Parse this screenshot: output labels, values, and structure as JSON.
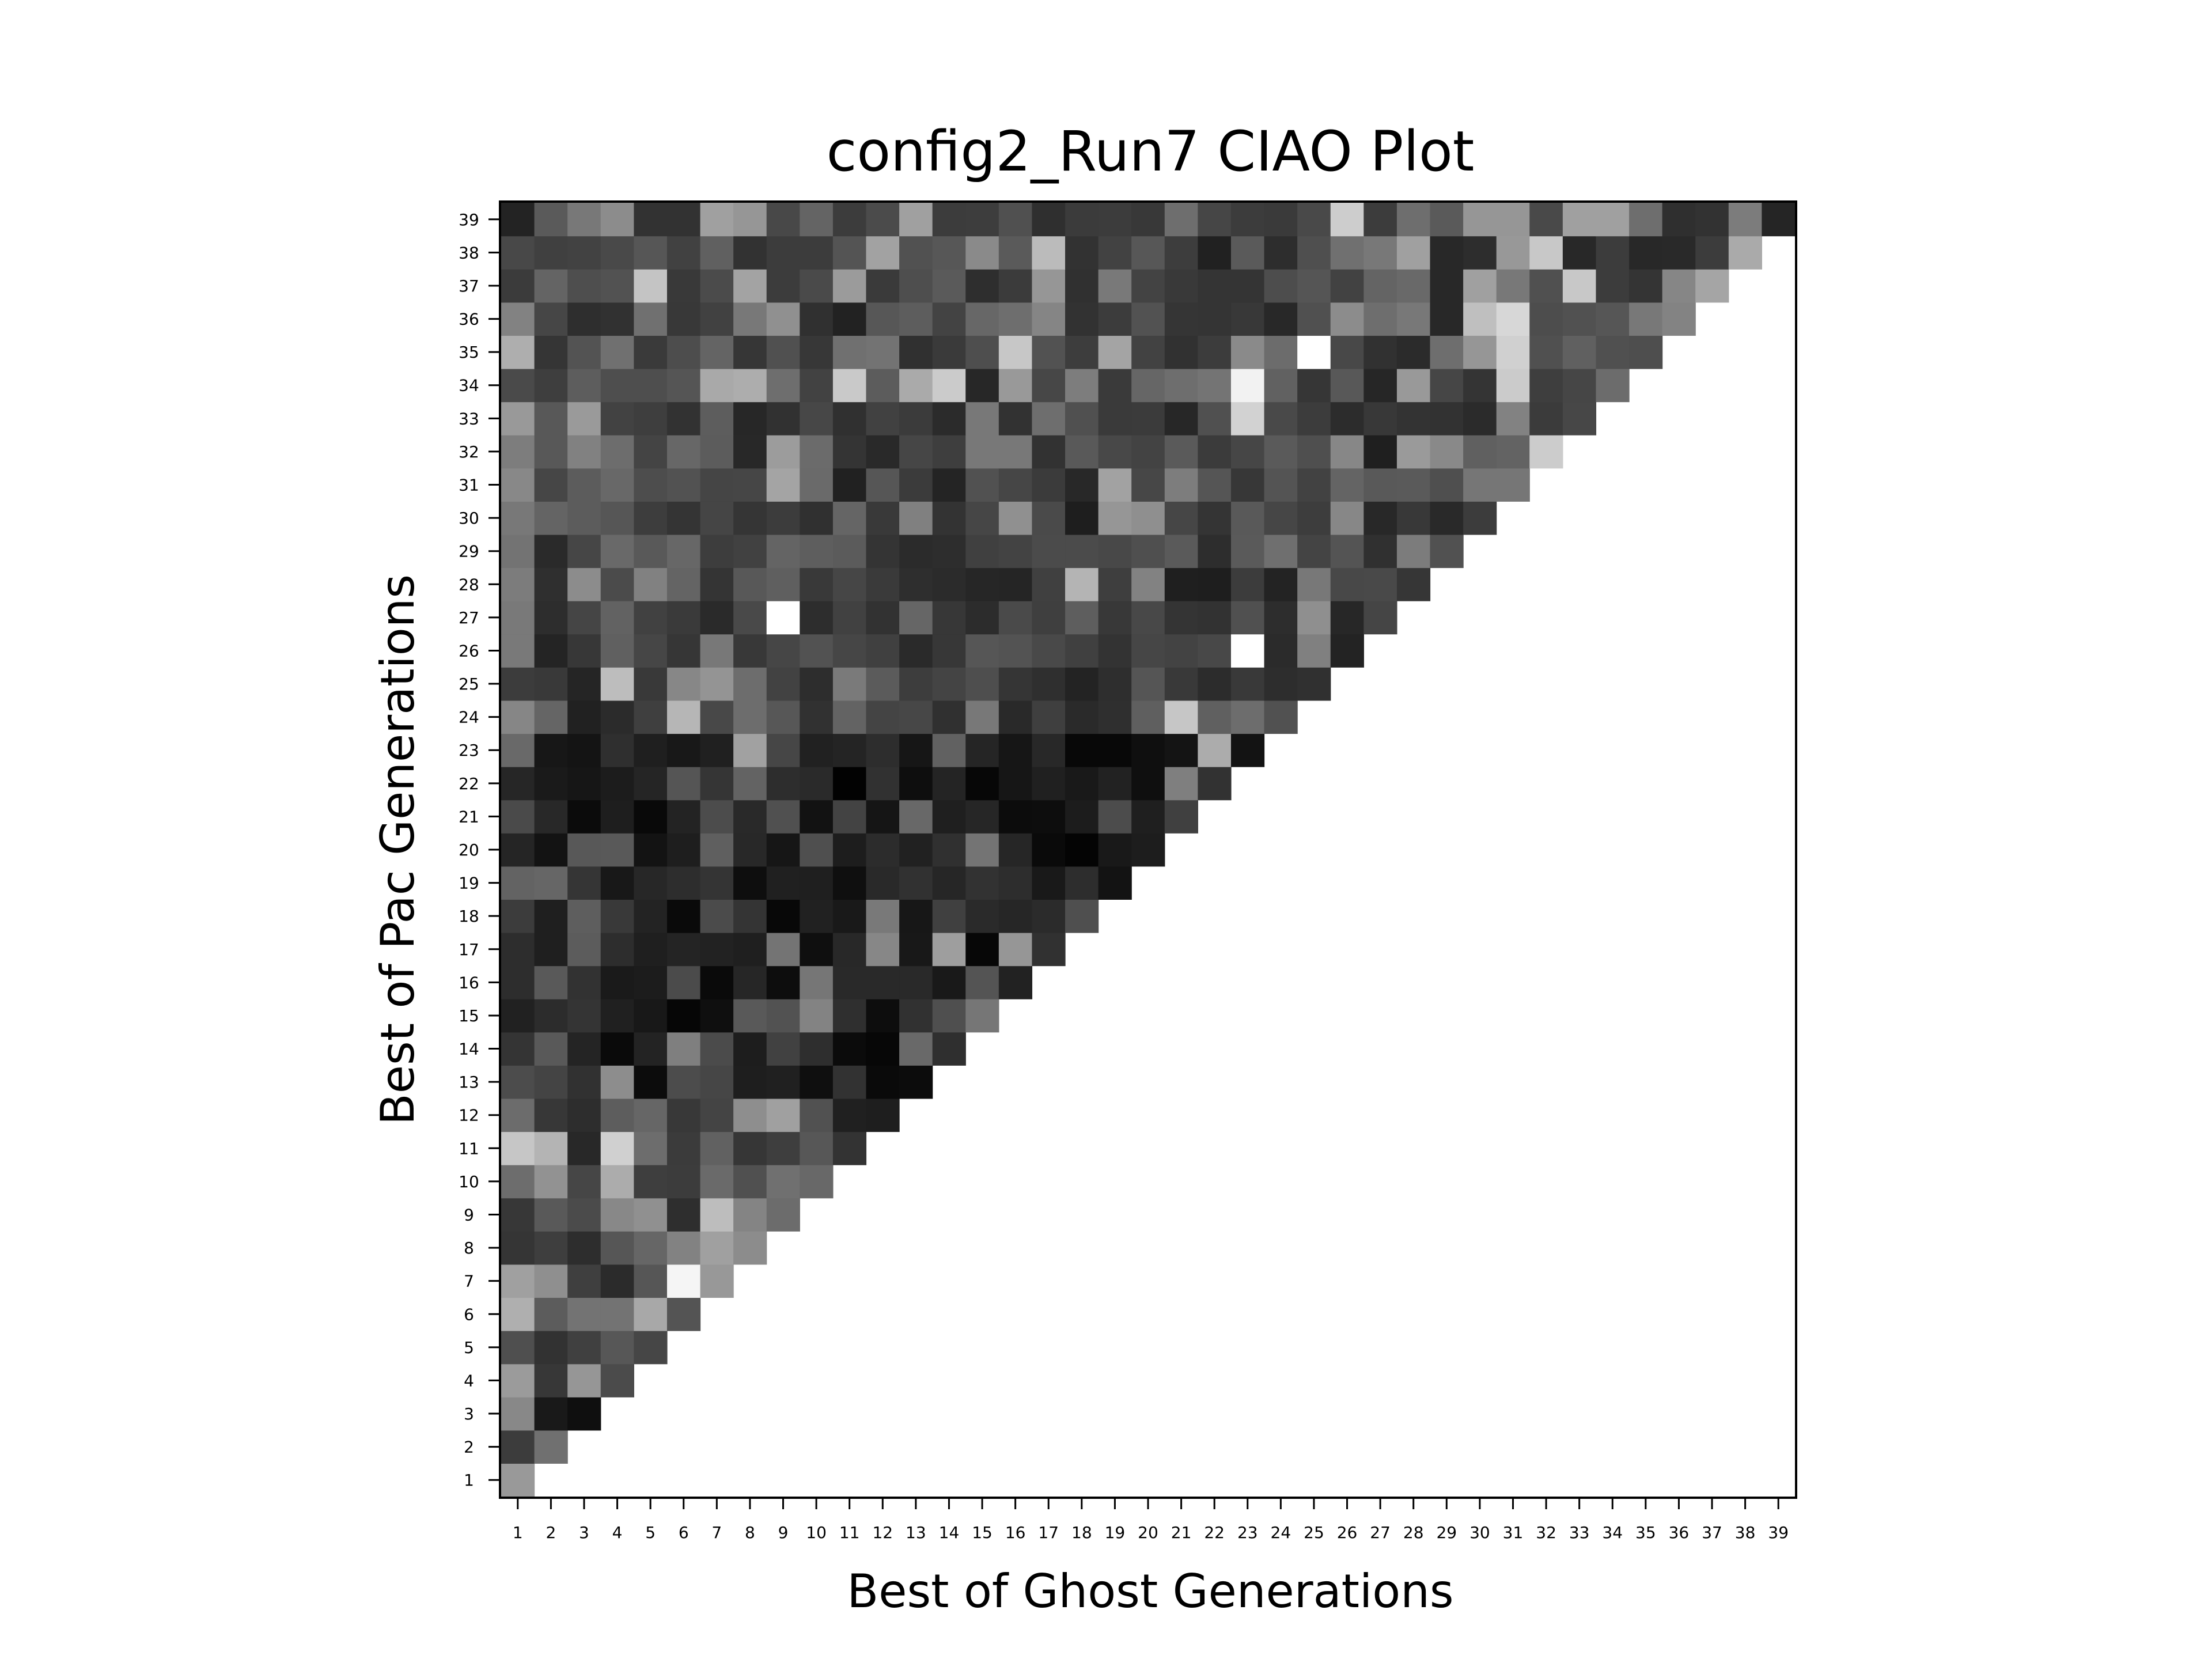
{
  "chart_data": {
    "type": "heatmap",
    "title": "config2_Run7 CIAO Plot",
    "xlabel": "Best of Ghost Generations",
    "ylabel": "Best of Pac Generations",
    "x_ticks": [
      1,
      2,
      3,
      4,
      5,
      6,
      7,
      8,
      9,
      10,
      11,
      12,
      13,
      14,
      15,
      16,
      17,
      18,
      19,
      20,
      21,
      22,
      23,
      24,
      25,
      26,
      27,
      28,
      29,
      30,
      31,
      32,
      33,
      34,
      35,
      36,
      37,
      38,
      39
    ],
    "y_ticks": [
      1,
      2,
      3,
      4,
      5,
      6,
      7,
      8,
      9,
      10,
      11,
      12,
      13,
      14,
      15,
      16,
      17,
      18,
      19,
      20,
      21,
      22,
      23,
      24,
      25,
      26,
      27,
      28,
      29,
      30,
      31,
      32,
      33,
      34,
      35,
      36,
      37,
      38,
      39
    ],
    "xlim": [
      1,
      39
    ],
    "ylim": [
      1,
      39
    ],
    "colormap": "grayscale",
    "grid": false,
    "legend": "none",
    "note_layout": "lower-triangular: row y has values for x = 1..y",
    "values": [
      [
        153
      ],
      [
        60,
        112
      ],
      [
        136,
        25,
        15
      ],
      [
        155,
        55,
        150,
        75
      ],
      [
        79,
        50,
        64,
        87,
        70
      ],
      [
        175,
        92,
        115,
        115,
        168,
        84
      ],
      [
        160,
        143,
        63,
        43,
        86,
        245,
        152
      ],
      [
        53,
        62,
        45,
        86,
        102,
        130,
        160,
        140
      ],
      [
        55,
        89,
        75,
        136,
        144,
        46,
        189,
        132,
        108
      ],
      [
        109,
        146,
        70,
        172,
        62,
        60,
        106,
        80,
        112,
        104
      ],
      [
        198,
        180,
        40,
        208,
        109,
        59,
        97,
        54,
        62,
        87,
        51
      ],
      [
        108,
        55,
        45,
        93,
        102,
        56,
        68,
        142,
        160,
        81,
        32,
        30
      ],
      [
        76,
        68,
        49,
        141,
        12,
        76,
        70,
        30,
        32,
        15,
        50,
        10,
        12
      ],
      [
        52,
        89,
        36,
        10,
        35,
        127,
        75,
        29,
        65,
        46,
        11,
        7,
        105,
        47
      ],
      [
        33,
        44,
        52,
        32,
        24,
        6,
        15,
        89,
        82,
        131,
        47,
        13,
        49,
        79,
        118
      ],
      [
        45,
        89,
        50,
        26,
        28,
        75,
        10,
        38,
        13,
        118,
        41,
        41,
        41,
        25,
        84,
        34
      ],
      [
        45,
        31,
        92,
        45,
        31,
        36,
        34,
        31,
        116,
        15,
        40,
        135,
        24,
        158,
        7,
        150,
        49
      ],
      [
        60,
        31,
        94,
        57,
        35,
        10,
        75,
        52,
        8,
        33,
        25,
        121,
        23,
        64,
        42,
        38,
        43,
        79
      ],
      [
        99,
        102,
        53,
        24,
        39,
        45,
        52,
        14,
        32,
        31,
        15,
        41,
        49,
        38,
        50,
        45,
        25,
        45,
        19
      ],
      [
        37,
        19,
        88,
        89,
        19,
        30,
        95,
        40,
        22,
        79,
        29,
        44,
        33,
        48,
        116,
        38,
        10,
        4,
        25,
        29
      ],
      [
        74,
        40,
        11,
        30,
        9,
        35,
        76,
        41,
        80,
        18,
        67,
        21,
        104,
        31,
        38,
        12,
        13,
        28,
        76,
        31,
        64
      ],
      [
        38,
        26,
        22,
        28,
        37,
        85,
        53,
        99,
        45,
        42,
        2,
        49,
        14,
        36,
        7,
        22,
        32,
        25,
        34,
        15,
        127,
        50
      ],
      [
        105,
        23,
        20,
        47,
        31,
        24,
        32,
        161,
        70,
        33,
        36,
        45,
        22,
        97,
        37,
        22,
        40,
        8,
        8,
        15,
        20,
        172,
        19
      ],
      [
        134,
        101,
        33,
        43,
        63,
        182,
        72,
        109,
        87,
        49,
        99,
        68,
        71,
        48,
        120,
        41,
        63,
        42,
        47,
        95,
        198,
        96,
        109,
        81
      ],
      [
        60,
        57,
        37,
        189,
        57,
        135,
        148,
        109,
        66,
        45,
        122,
        91,
        61,
        68,
        78,
        53,
        47,
        35,
        46,
        85,
        57,
        44,
        57,
        45,
        48
      ],
      [
        121,
        36,
        55,
        96,
        70,
        54,
        120,
        56,
        70,
        82,
        70,
        64,
        42,
        55,
        86,
        83,
        73,
        64,
        51,
        70,
        67,
        72,
        255,
        43,
        128,
        35
      ],
      [
        121,
        45,
        69,
        98,
        65,
        58,
        42,
        73,
        255,
        45,
        65,
        50,
        102,
        55,
        44,
        74,
        63,
        94,
        56,
        72,
        52,
        50,
        80,
        45,
        143,
        39,
        69
      ],
      [
        124,
        47,
        140,
        75,
        129,
        100,
        52,
        88,
        95,
        57,
        70,
        58,
        46,
        43,
        38,
        37,
        64,
        180,
        62,
        130,
        31,
        30,
        60,
        35,
        120,
        72,
        73,
        54
      ],
      [
        115,
        42,
        70,
        105,
        89,
        103,
        61,
        65,
        100,
        94,
        91,
        52,
        43,
        45,
        64,
        67,
        75,
        75,
        72,
        79,
        90,
        45,
        90,
        111,
        68,
        84,
        48,
        124,
        81
      ],
      [
        120,
        100,
        92,
        86,
        61,
        52,
        69,
        53,
        60,
        48,
        101,
        57,
        128,
        51,
        70,
        144,
        74,
        30,
        150,
        143,
        70,
        52,
        89,
        70,
        61,
        135,
        40,
        56,
        41,
        60
      ],
      [
        136,
        70,
        92,
        104,
        77,
        82,
        69,
        70,
        164,
        106,
        33,
        86,
        59,
        36,
        81,
        70,
        59,
        40,
        162,
        71,
        125,
        85,
        55,
        84,
        66,
        100,
        89,
        90,
        79,
        118,
        118
      ],
      [
        125,
        88,
        129,
        109,
        68,
        103,
        92,
        40,
        156,
        107,
        52,
        41,
        70,
        62,
        120,
        120,
        50,
        89,
        72,
        67,
        90,
        59,
        70,
        90,
        79,
        135,
        31,
        154,
        137,
        96,
        99,
        204
      ],
      [
        153,
        88,
        154,
        66,
        62,
        50,
        93,
        39,
        49,
        71,
        48,
        65,
        59,
        43,
        120,
        50,
        110,
        80,
        58,
        59,
        39,
        80,
        210,
        73,
        60,
        44,
        56,
        51,
        50,
        43,
        130,
        59,
        71
      ],
      [
        74,
        62,
        93,
        78,
        78,
        85,
        169,
        173,
        110,
        66,
        201,
        92,
        170,
        203,
        39,
        153,
        71,
        125,
        58,
        102,
        110,
        116,
        242,
        97,
        54,
        88,
        38,
        153,
        70,
        52,
        203,
        62,
        70,
        108
      ],
      [
        174,
        53,
        83,
        112,
        58,
        77,
        100,
        54,
        80,
        55,
        112,
        115,
        48,
        58,
        78,
        199,
        82,
        61,
        164,
        66,
        49,
        60,
        138,
        108,
        255,
        72,
        49,
        43,
        110,
        150,
        208,
        80,
        96,
        80,
        78
      ],
      [
        130,
        70,
        46,
        49,
        112,
        56,
        65,
        120,
        144,
        48,
        34,
        87,
        93,
        67,
        103,
        110,
        133,
        50,
        60,
        82,
        53,
        52,
        56,
        40,
        80,
        140,
        110,
        120,
        40,
        191,
        215,
        77,
        81,
        86,
        120,
        131
      ],
      [
        59,
        100,
        78,
        82,
        196,
        57,
        75,
        163,
        60,
        74,
        155,
        58,
        78,
        90,
        46,
        59,
        150,
        48,
        121,
        67,
        57,
        52,
        52,
        77,
        85,
        66,
        100,
        105,
        40,
        160,
        120,
        80,
        200,
        60,
        52,
        134,
        165
      ],
      [
        72,
        64,
        66,
        73,
        86,
        65,
        96,
        50,
        60,
        60,
        84,
        162,
        81,
        87,
        138,
        90,
        187,
        50,
        66,
        87,
        61,
        33,
        90,
        45,
        79,
        112,
        120,
        160,
        40,
        45,
        152,
        200,
        40,
        60,
        40,
        41,
        60,
        170
      ],
      [
        35,
        90,
        120,
        140,
        50,
        50,
        160,
        150,
        72,
        100,
        60,
        75,
        160,
        60,
        61,
        80,
        47,
        59,
        60,
        56,
        110,
        70,
        60,
        58,
        73,
        205,
        60,
        110,
        90,
        150,
        150,
        73,
        160,
        160,
        110,
        47,
        50,
        124,
        37
      ]
    ]
  }
}
